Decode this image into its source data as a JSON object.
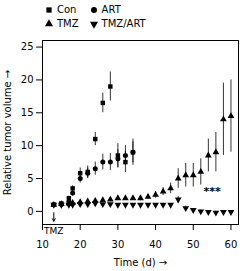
{
  "chart_data": {
    "type": "scatter",
    "xlabel": "Time (d)",
    "ylabel": "Relative tumor volume",
    "xlim": [
      10,
      62
    ],
    "ylim": [
      -2,
      26
    ],
    "xticks": [
      10,
      20,
      30,
      40,
      50,
      60
    ],
    "yticks": [
      0,
      5,
      10,
      15,
      20,
      25
    ],
    "grid": false,
    "legend": "upper left",
    "series": [
      {
        "name": "Con",
        "color": "#000000",
        "marker": "square",
        "x": [
          13,
          15,
          17,
          18,
          20,
          22,
          24,
          26,
          28,
          30,
          32,
          34
        ],
        "values": [
          1.0,
          1.2,
          2.0,
          3.5,
          5.8,
          6.0,
          11.0,
          16.5,
          19.0,
          8.5,
          7.5,
          9.0
        ],
        "yerr": [
          0.1,
          0.2,
          0.3,
          0.4,
          0.8,
          0.9,
          1.0,
          1.5,
          2.2,
          1.8,
          1.6,
          2.0
        ]
      },
      {
        "name": "ART",
        "color": "#000000",
        "marker": "circle",
        "x": [
          13,
          15,
          17,
          18,
          20,
          22,
          24,
          26,
          28,
          30,
          32,
          34
        ],
        "values": [
          1.0,
          1.1,
          1.5,
          2.8,
          5.0,
          5.8,
          6.5,
          7.5,
          7.5,
          8.0,
          8.5,
          9.0
        ],
        "yerr": [
          0.1,
          0.2,
          0.3,
          0.5,
          0.7,
          0.8,
          1.0,
          1.2,
          1.3,
          1.4,
          1.5,
          1.6
        ]
      },
      {
        "name": "TMZ",
        "color": "#000000",
        "marker": "triangle-up",
        "x": [
          13,
          15,
          17,
          18,
          20,
          22,
          24,
          26,
          28,
          30,
          32,
          34,
          36,
          38,
          40,
          42,
          44,
          46,
          48,
          50,
          52,
          54,
          56,
          58,
          60
        ],
        "values": [
          1.0,
          1.1,
          1.2,
          1.3,
          1.4,
          1.5,
          1.6,
          1.7,
          1.8,
          2.0,
          2.0,
          2.0,
          2.0,
          2.2,
          2.5,
          3.0,
          3.5,
          5.0,
          5.5,
          5.5,
          6.0,
          8.5,
          9.0,
          14.0,
          14.5
        ],
        "yerr": [
          0.1,
          0.1,
          0.1,
          0.1,
          0.2,
          0.2,
          0.2,
          0.2,
          0.3,
          0.3,
          0.3,
          0.3,
          0.4,
          0.4,
          0.5,
          0.6,
          0.8,
          1.5,
          1.8,
          1.8,
          2.0,
          2.5,
          3.0,
          5.5,
          5.5
        ]
      },
      {
        "name": "TMZ/ART",
        "color": "#000000",
        "marker": "triangle-down",
        "x": [
          13,
          15,
          17,
          18,
          20,
          22,
          24,
          26,
          28,
          30,
          32,
          34,
          36,
          38,
          40,
          42,
          44,
          46,
          48,
          50,
          52,
          54,
          56,
          58,
          60
        ],
        "values": [
          1.0,
          1.0,
          1.0,
          1.0,
          1.1,
          1.1,
          1.2,
          1.1,
          1.1,
          1.0,
          1.0,
          1.0,
          1.0,
          1.0,
          1.0,
          1.0,
          1.0,
          1.8,
          0.5,
          0.2,
          0.0,
          -0.1,
          -0.2,
          -0.1,
          -0.1
        ],
        "yerr": [
          0.1,
          0.1,
          0.1,
          0.1,
          0.1,
          0.1,
          0.1,
          0.1,
          0.1,
          0.1,
          0.1,
          0.1,
          0.1,
          0.1,
          0.1,
          0.1,
          0.2,
          0.5,
          0.3,
          0.2,
          0.2,
          0.2,
          0.2,
          0.2,
          0.2
        ]
      }
    ],
    "annotations": [
      {
        "text": "TMZ",
        "x": 13,
        "y": -2.5,
        "arrow": {
          "x1": 13,
          "y1": -0.2,
          "x2": 13,
          "y2": -1.5
        }
      },
      {
        "text": "***",
        "x": 55,
        "y": 2.5
      }
    ]
  }
}
